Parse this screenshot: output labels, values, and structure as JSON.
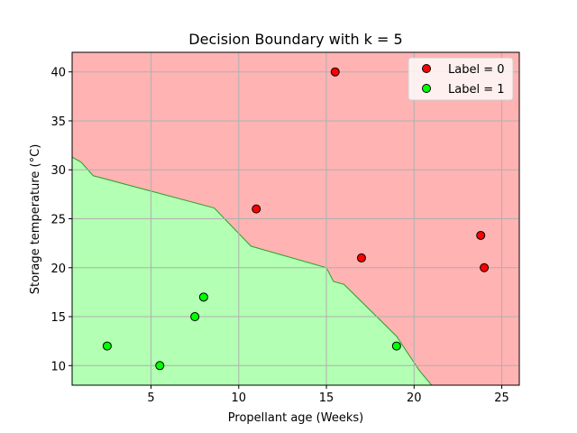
{
  "chart_data": {
    "type": "scatter",
    "title": "Decision Boundary with k = 5",
    "xlabel": "Propellant age (Weeks)",
    "ylabel": "Storage temperature (°C)",
    "xlim": [
      0.5,
      26.0
    ],
    "ylim": [
      8.0,
      42.0
    ],
    "xticks": [
      5,
      10,
      15,
      20,
      25
    ],
    "yticks": [
      10,
      15,
      20,
      25,
      30,
      35,
      40
    ],
    "grid": true,
    "legend_position": "top-right",
    "region_colors": {
      "label_0": "#ffb3b3",
      "label_1": "#b3ffb3",
      "boundary": "#2ca02c"
    },
    "decision_boundary": [
      [
        0.5,
        31.3
      ],
      [
        1.0,
        30.8
      ],
      [
        1.7,
        29.4
      ],
      [
        8.6,
        26.1
      ],
      [
        10.7,
        22.2
      ],
      [
        15.0,
        20.0
      ],
      [
        15.4,
        18.6
      ],
      [
        16.0,
        18.3
      ],
      [
        19.0,
        13.0
      ],
      [
        20.3,
        9.5
      ],
      [
        21.0,
        8.0
      ]
    ],
    "series": [
      {
        "name": "Label = 0",
        "color": "#ff0000",
        "points": [
          [
            15.5,
            40.0
          ],
          [
            11.0,
            26.0
          ],
          [
            17.0,
            21.0
          ],
          [
            23.8,
            23.3
          ],
          [
            24.0,
            20.0
          ]
        ]
      },
      {
        "name": "Label = 1",
        "color": "#00ff00",
        "points": [
          [
            2.5,
            12.0
          ],
          [
            5.5,
            10.0
          ],
          [
            7.5,
            15.0
          ],
          [
            8.0,
            17.0
          ],
          [
            19.0,
            12.0
          ]
        ]
      }
    ]
  }
}
